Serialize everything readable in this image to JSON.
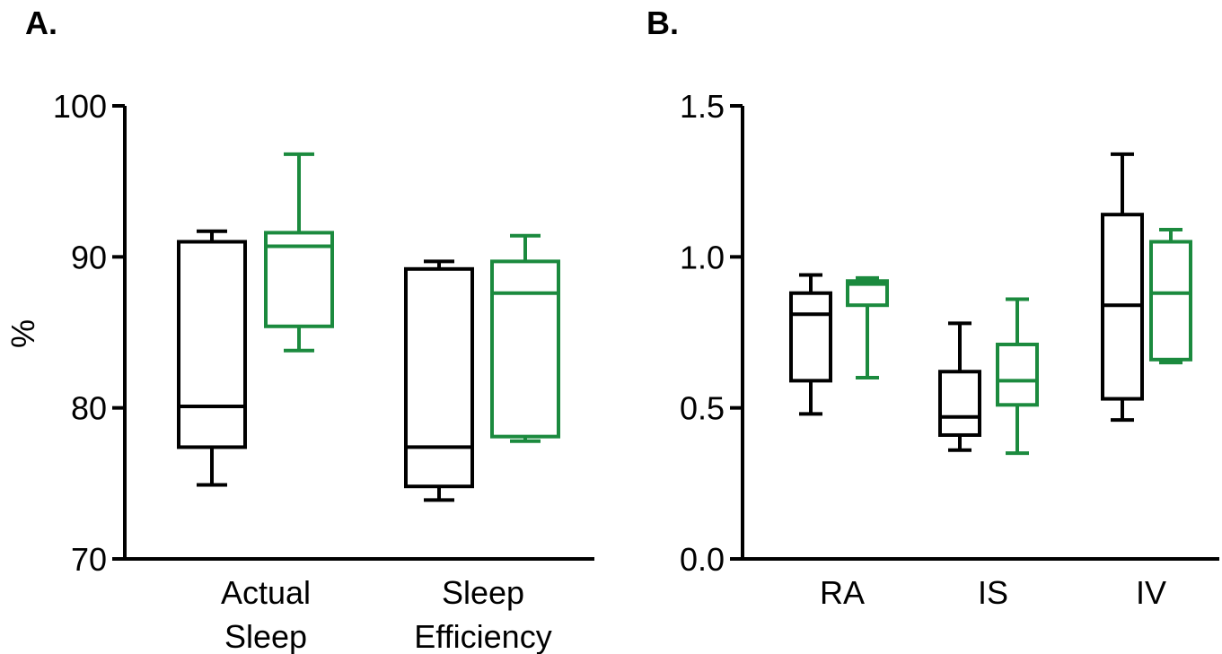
{
  "colors": {
    "group1": "#000000",
    "group2": "#1b8a3e"
  },
  "chart_data": [
    {
      "type": "box",
      "panel_label": "A.",
      "ylabel": "%",
      "ylim": [
        70,
        100
      ],
      "yticks": [
        "70",
        "80",
        "90",
        "100"
      ],
      "categories": [
        {
          "label_lines": [
            "Actual",
            "Sleep"
          ]
        },
        {
          "label_lines": [
            "Sleep",
            "Efficiency"
          ]
        }
      ],
      "series": [
        {
          "boxes": [
            {
              "min": 74.9,
              "q1": 77.4,
              "median": 80.1,
              "q3": 91.0,
              "max": 91.7
            },
            {
              "min": 73.9,
              "q1": 74.8,
              "median": 77.4,
              "q3": 89.2,
              "max": 89.7
            }
          ]
        },
        {
          "boxes": [
            {
              "min": 83.8,
              "q1": 85.4,
              "median": 90.7,
              "q3": 91.6,
              "max": 96.8
            },
            {
              "min": 77.8,
              "q1": 78.1,
              "median": 87.6,
              "q3": 89.7,
              "max": 91.4
            }
          ]
        }
      ]
    },
    {
      "type": "box",
      "panel_label": "B.",
      "ylabel": "",
      "ylim": [
        0,
        1.5
      ],
      "yticks": [
        "0.0",
        "0.5",
        "1.0",
        "1.5"
      ],
      "categories": [
        {
          "label_lines": [
            "RA"
          ]
        },
        {
          "label_lines": [
            "IS"
          ]
        },
        {
          "label_lines": [
            "IV"
          ]
        }
      ],
      "series": [
        {
          "boxes": [
            {
              "min": 0.48,
              "q1": 0.59,
              "median": 0.81,
              "q3": 0.88,
              "max": 0.94
            },
            {
              "min": 0.36,
              "q1": 0.41,
              "median": 0.47,
              "q3": 0.62,
              "max": 0.78
            },
            {
              "min": 0.46,
              "q1": 0.53,
              "median": 0.84,
              "q3": 1.14,
              "max": 1.34
            }
          ]
        },
        {
          "boxes": [
            {
              "min": 0.6,
              "q1": 0.84,
              "median": 0.91,
              "q3": 0.92,
              "max": 0.93
            },
            {
              "min": 0.35,
              "q1": 0.51,
              "median": 0.59,
              "q3": 0.71,
              "max": 0.86
            },
            {
              "min": 0.65,
              "q1": 0.66,
              "median": 0.88,
              "q3": 1.05,
              "max": 1.09
            }
          ]
        }
      ]
    }
  ]
}
